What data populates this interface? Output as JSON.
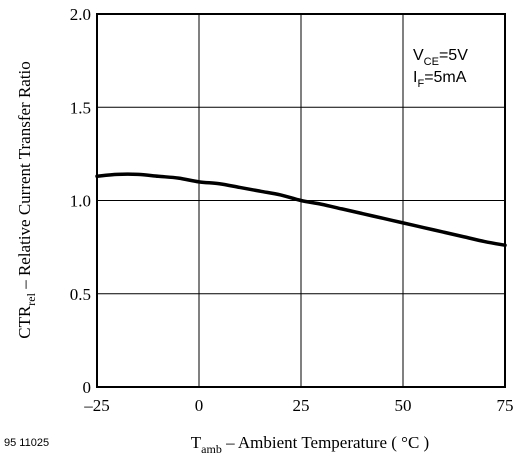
{
  "chart_data": {
    "type": "line",
    "title": "",
    "xlabel": {
      "main": "T",
      "sub": "amb",
      "rest": " – Ambient Temperature ( °C )"
    },
    "ylabel": {
      "main": "CTR",
      "sub": "rel",
      "rest": " – Relative Current Transfer Ratio"
    },
    "xlim": [
      -25,
      75
    ],
    "ylim": [
      0,
      2.0
    ],
    "xticks": [
      -25,
      0,
      25,
      50,
      75
    ],
    "xtick_labels": [
      "–25",
      "0",
      "25",
      "50",
      "75"
    ],
    "yticks": [
      0,
      0.5,
      1.0,
      1.5,
      2.0
    ],
    "ytick_labels": [
      "0",
      "0.5",
      "1.0",
      "1.5",
      "2.0"
    ],
    "grid": true,
    "legend": "none",
    "series": [
      {
        "color": "#000000",
        "x": [
          -25,
          -20,
          -15,
          -10,
          -5,
          0,
          5,
          10,
          15,
          20,
          25,
          30,
          35,
          40,
          45,
          50,
          55,
          60,
          65,
          70,
          75
        ],
        "y": [
          1.13,
          1.14,
          1.14,
          1.13,
          1.12,
          1.1,
          1.09,
          1.07,
          1.05,
          1.03,
          1.0,
          0.98,
          0.955,
          0.93,
          0.905,
          0.88,
          0.855,
          0.83,
          0.805,
          0.78,
          0.76
        ]
      }
    ],
    "annotation": {
      "line1_main": "V",
      "line1_sub": "CE",
      "line1_rest": "=5V",
      "line2_main": "I",
      "line2_sub": "F",
      "line2_rest": "=5mA"
    }
  },
  "figure_id": "95 11025"
}
